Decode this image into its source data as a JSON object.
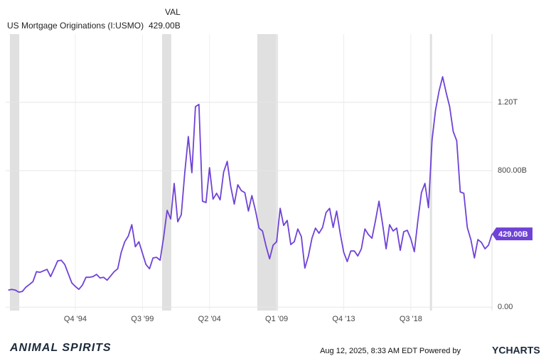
{
  "chart_data": {
    "type": "line",
    "legend_header": "VAL",
    "current_label": "429.00B",
    "x": [
      1990,
      1990.25,
      1990.5,
      1990.75,
      1991,
      1991.25,
      1991.5,
      1991.75,
      1992,
      1992.25,
      1992.5,
      1992.75,
      1993,
      1993.25,
      1993.5,
      1993.75,
      1994,
      1994.25,
      1994.5,
      1994.75,
      1995,
      1995.25,
      1995.5,
      1995.75,
      1996,
      1996.25,
      1996.5,
      1996.75,
      1997,
      1997.25,
      1997.5,
      1997.75,
      1998,
      1998.25,
      1998.5,
      1998.75,
      1999,
      1999.25,
      1999.5,
      1999.75,
      2000,
      2000.25,
      2000.5,
      2000.75,
      2001,
      2001.25,
      2001.5,
      2001.75,
      2002,
      2002.25,
      2002.5,
      2002.75,
      2003,
      2003.25,
      2003.5,
      2003.75,
      2004,
      2004.25,
      2004.5,
      2004.75,
      2005,
      2005.25,
      2005.5,
      2005.75,
      2006,
      2006.25,
      2006.5,
      2006.75,
      2007,
      2007.25,
      2007.5,
      2007.75,
      2008,
      2008.25,
      2008.5,
      2008.75,
      2009,
      2009.25,
      2009.5,
      2009.75,
      2010,
      2010.25,
      2010.5,
      2010.75,
      2011,
      2011.25,
      2011.5,
      2011.75,
      2012,
      2012.25,
      2012.5,
      2012.75,
      2013,
      2013.25,
      2013.5,
      2013.75,
      2014,
      2014.25,
      2014.5,
      2014.75,
      2015,
      2015.25,
      2015.5,
      2015.75,
      2016,
      2016.25,
      2016.5,
      2016.75,
      2017,
      2017.25,
      2017.5,
      2017.75,
      2018,
      2018.25,
      2018.5,
      2018.75,
      2019,
      2019.25,
      2019.5,
      2019.75,
      2020,
      2020.25,
      2020.5,
      2020.75,
      2021,
      2021.25,
      2021.5,
      2021.75,
      2022,
      2022.25,
      2022.5,
      2022.75,
      2023,
      2023.25,
      2023.5,
      2023.75,
      2024,
      2024.25
    ],
    "series": [
      {
        "name": "US Mortgage Originations (I:USMO)",
        "color": "#6f42d6",
        "values": [
          100,
          104,
          100,
          88,
          92,
          117,
          133,
          150,
          208,
          204,
          213,
          221,
          179,
          225,
          271,
          275,
          250,
          196,
          142,
          121,
          104,
          129,
          175,
          175,
          179,
          192,
          171,
          175,
          158,
          183,
          208,
          225,
          321,
          383,
          417,
          483,
          354,
          383,
          317,
          250,
          225,
          288,
          292,
          275,
          408,
          567,
          517,
          725,
          500,
          542,
          788,
          1000,
          788,
          1175,
          1188,
          621,
          613,
          817,
          633,
          667,
          629,
          792,
          854,
          708,
          604,
          717,
          683,
          671,
          563,
          654,
          567,
          463,
          446,
          358,
          283,
          363,
          383,
          579,
          479,
          508,
          367,
          383,
          458,
          413,
          229,
          300,
          404,
          463,
          433,
          467,
          554,
          579,
          467,
          563,
          433,
          321,
          267,
          329,
          329,
          300,
          342,
          458,
          425,
          404,
          508,
          621,
          488,
          342,
          483,
          446,
          463,
          333,
          442,
          450,
          400,
          325,
          508,
          671,
          725,
          583,
          979,
          1154,
          1267,
          1350,
          1258,
          1175,
          1029,
          975,
          675,
          667,
          467,
          396,
          288,
          396,
          379,
          342,
          363,
          429
        ]
      }
    ],
    "recessions": [
      [
        1990.12,
        1990.78
      ],
      [
        2000.89,
        2001.54
      ],
      [
        2007.63,
        2009.09
      ],
      [
        2019.85,
        2020.0
      ]
    ],
    "recession_color": "#e0e0e0",
    "xlim": [
      1989.9,
      2025.0
    ],
    "ylim": [
      -20,
      1600
    ],
    "xticks": [
      {
        "value": 1994.75,
        "label": "Q4 '94"
      },
      {
        "value": 1999.5,
        "label": "Q3 '99"
      },
      {
        "value": 2004.25,
        "label": "Q2 '04"
      },
      {
        "value": 2009.0,
        "label": "Q1 '09"
      },
      {
        "value": 2013.75,
        "label": "Q4 '13"
      },
      {
        "value": 2018.5,
        "label": "Q3 '18"
      }
    ],
    "yticks": [
      {
        "value": 0,
        "label": "0.00"
      },
      {
        "value": 800,
        "label": "800.00B"
      },
      {
        "value": 1200,
        "label": "1.20T"
      }
    ],
    "grid": true,
    "footer": {
      "timestamp": "Aug 12, 2025, 8:33 AM EDT Powered by",
      "brand": "YCHARTS",
      "logo": "ANIMAL SPIRITS"
    }
  }
}
